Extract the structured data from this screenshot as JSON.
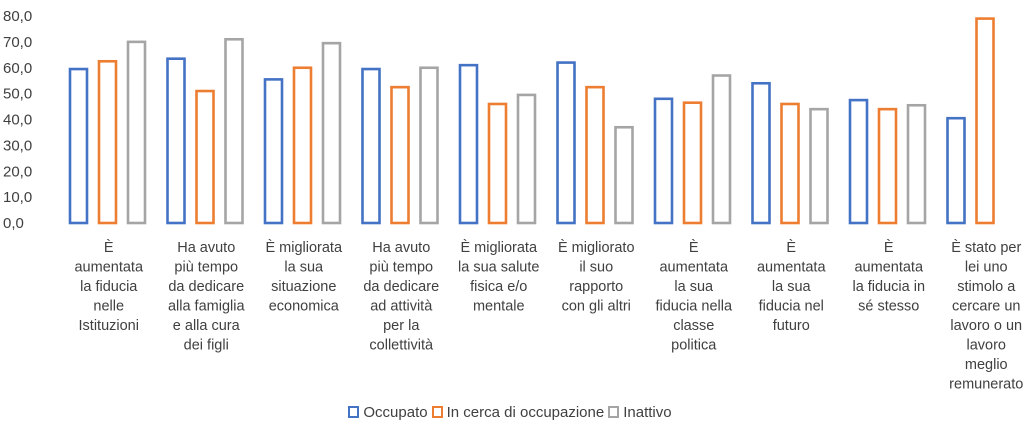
{
  "chart_data": {
    "type": "bar",
    "style": "outlined-columns",
    "title": "",
    "xlabel": "",
    "ylabel": "",
    "ylim": [
      0,
      80
    ],
    "ytick_step": 10,
    "ytick_labels": [
      "0,0",
      "10,0",
      "20,0",
      "30,0",
      "40,0",
      "50,0",
      "60,0",
      "70,0",
      "80,0"
    ],
    "grid": false,
    "legend_position": "bottom",
    "categories": [
      "È aumentata la fiducia nelle Istituzioni",
      "Ha avuto più tempo da dedicare alla famiglia e alla cura dei figli",
      "È migliorata la sua situazione economica",
      "Ha avuto più tempo da dedicare ad attività per la collettività",
      "È migliorata la sua salute fisica e/o mentale",
      "È migliorato il suo rapporto con gli altri",
      "È aumentata la sua fiducia nella classe politica",
      "È aumentata la sua fiducia nel futuro",
      "È aumentata la fiducia in sé stesso",
      "È stato per lei uno stimolo a cercare un lavoro o un lavoro meglio remunerato"
    ],
    "category_lines": [
      [
        "È",
        "aumentata",
        "la fiducia",
        "nelle",
        "Istituzioni"
      ],
      [
        "Ha avuto",
        "più tempo",
        "da dedicare",
        "alla famiglia",
        "e alla cura",
        "dei figli"
      ],
      [
        "È migliorata",
        "la sua",
        "situazione",
        "economica"
      ],
      [
        "Ha avuto",
        "più tempo",
        "da dedicare",
        "ad attività",
        "per la",
        "collettività"
      ],
      [
        "È migliorata",
        "la sua salute",
        "fisica e/o",
        "mentale"
      ],
      [
        "È migliorato",
        "il suo",
        "rapporto",
        "con gli altri"
      ],
      [
        "È",
        "aumentata",
        "la sua",
        "fiducia nella",
        "classe",
        "politica"
      ],
      [
        "È",
        "aumentata",
        "la sua",
        "fiducia nel",
        "futuro"
      ],
      [
        "È",
        "aumentata",
        "la fiducia in",
        "sé stesso"
      ],
      [
        "È stato per",
        "lei uno",
        "stimolo a",
        "cercare un",
        "lavoro o un",
        "lavoro",
        "meglio",
        "remunerato"
      ]
    ],
    "series": [
      {
        "name": "Occupato",
        "color": "#4472C4",
        "values": [
          59.5,
          63.5,
          55.5,
          59.5,
          61.0,
          62.0,
          48.0,
          54.0,
          47.5,
          40.5
        ]
      },
      {
        "name": "In cerca di occupazione",
        "color": "#ED7D31",
        "values": [
          62.5,
          51.0,
          60.0,
          52.5,
          46.0,
          52.5,
          46.5,
          46.0,
          44.0,
          79.0
        ]
      },
      {
        "name": "Inattivo",
        "color": "#A5A5A5",
        "values": [
          70.0,
          71.0,
          69.5,
          60.0,
          49.5,
          37.0,
          57.0,
          44.0,
          45.5,
          null
        ]
      }
    ]
  }
}
